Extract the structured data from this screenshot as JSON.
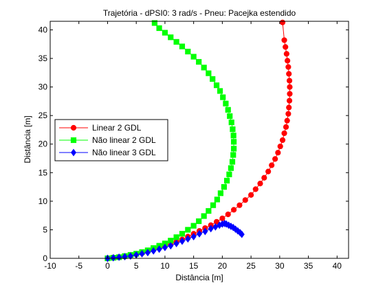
{
  "chart_data": {
    "type": "line",
    "title": "Trajetória - dPSI0: 3 rad/s - Pneu: Pacejka estendido",
    "xlabel": "Distância [m]",
    "ylabel": "Distância [m]",
    "xlim": [
      -10,
      42
    ],
    "ylim": [
      0,
      41.5
    ],
    "xticks": [
      "-10",
      "-5",
      "0",
      "5",
      "10",
      "15",
      "20",
      "25",
      "30",
      "35",
      "40"
    ],
    "yticks": [
      "0",
      "5",
      "10",
      "15",
      "20",
      "25",
      "30",
      "35",
      "40"
    ],
    "grid": false,
    "legend_position": "middle-left",
    "series": [
      {
        "name": "Linear 2 GDL",
        "color": "#ff0000",
        "marker": "circle",
        "x": [
          0,
          1,
          2,
          3,
          4,
          5,
          6,
          7,
          8,
          9,
          10,
          11,
          12,
          13,
          14,
          15,
          16,
          17,
          18,
          19,
          20,
          21,
          22,
          23,
          24,
          25,
          25.8,
          26.6,
          27.3,
          28,
          28.6,
          29.2,
          29.7,
          30.1,
          30.5,
          30.8,
          31.1,
          31.3,
          31.5,
          31.6,
          31.7,
          31.75,
          31.75,
          31.7,
          31.6,
          31.5,
          31.35,
          31.2,
          31,
          30.8,
          30.5
        ],
        "y": [
          0,
          0.1,
          0.2,
          0.3,
          0.5,
          0.7,
          0.9,
          1.2,
          1.5,
          1.8,
          2.1,
          2.5,
          2.9,
          3.3,
          3.8,
          4.3,
          4.8,
          5.3,
          5.8,
          6.4,
          7,
          7.7,
          8.5,
          9.3,
          10.2,
          11.1,
          12.1,
          13.1,
          14.1,
          15.2,
          16.3,
          17.4,
          18.5,
          19.6,
          20.7,
          21.9,
          23,
          24.1,
          25.3,
          26.4,
          27.6,
          28.8,
          30,
          31.1,
          32.3,
          33.5,
          34.6,
          35.8,
          37,
          38.2,
          41.3
        ]
      },
      {
        "name": "Não linear 2 GDL",
        "color": "#00ff00",
        "marker": "square",
        "x": [
          0,
          1,
          2,
          3,
          4,
          5,
          6,
          7,
          8,
          9,
          10,
          11,
          12,
          13,
          14,
          15,
          15.9,
          16.8,
          17.6,
          18.4,
          19.1,
          19.7,
          20.3,
          20.8,
          21.2,
          21.5,
          21.75,
          21.9,
          22,
          22,
          21.95,
          21.8,
          21.6,
          21.3,
          21,
          20.6,
          20.1,
          19.6,
          19,
          18.3,
          17.6,
          16.8,
          15.9,
          15,
          14,
          13,
          12,
          11,
          10,
          9,
          8.2
        ],
        "y": [
          0,
          0.1,
          0.2,
          0.4,
          0.6,
          0.8,
          1.1,
          1.4,
          1.8,
          2.2,
          2.6,
          3.1,
          3.7,
          4.3,
          5,
          5.7,
          6.5,
          7.4,
          8.3,
          9.3,
          10.3,
          11.4,
          12.5,
          13.6,
          14.7,
          15.8,
          16.9,
          18.1,
          19.2,
          20.4,
          21.5,
          22.6,
          23.8,
          24.9,
          26,
          27.1,
          28.2,
          29.3,
          30.3,
          31.4,
          32.4,
          33.4,
          34.4,
          35.3,
          36.2,
          37.1,
          37.9,
          38.7,
          39.5,
          40.3,
          41.2
        ]
      },
      {
        "name": "Não linear 3 GDL",
        "color": "#0000ff",
        "marker": "diamond",
        "x": [
          0,
          1,
          2,
          3,
          4,
          5,
          6,
          7,
          8,
          9,
          10,
          11,
          12,
          13,
          14,
          15,
          16,
          17,
          18,
          18.8,
          19.5,
          20,
          20.4,
          20.7,
          21.1,
          21.5,
          21.9,
          22.3,
          22.7,
          23.1,
          23.4
        ],
        "y": [
          0,
          0.1,
          0.2,
          0.3,
          0.4,
          0.6,
          0.8,
          1.0,
          1.3,
          1.6,
          1.9,
          2.2,
          2.6,
          3.0,
          3.4,
          3.8,
          4.3,
          4.7,
          5.2,
          5.5,
          5.8,
          6.0,
          6.1,
          6.0,
          5.8,
          5.6,
          5.4,
          5.1,
          4.8,
          4.5,
          4.2
        ]
      }
    ]
  }
}
